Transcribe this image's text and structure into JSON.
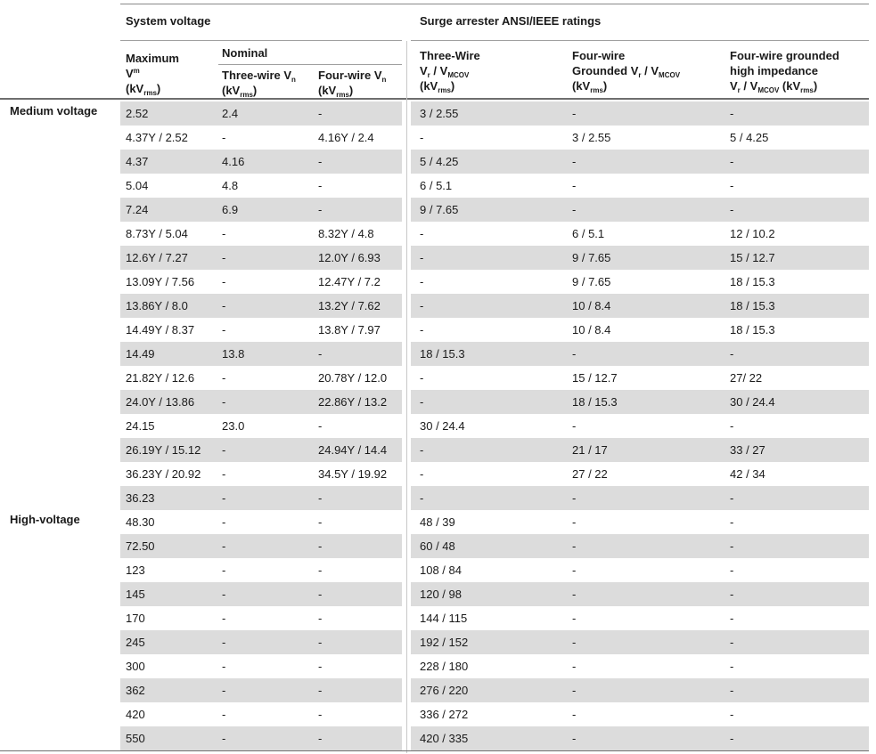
{
  "headers": {
    "system_voltage": "System voltage",
    "surge_arrester": "Surge arrester ANSI/IEEE ratings",
    "nominal": "Nominal",
    "maximum": {
      "line1": "Maximum",
      "line2_main": "V",
      "line2_sup": "m",
      "line3_pre": "(kV",
      "line3_sub": "rms",
      "line3_post": ")"
    },
    "three_wire_vn": {
      "main": "Three-wire V",
      "sub": "n",
      "unit_pre": "(kV",
      "unit_sub": "rms",
      "unit_post": ")"
    },
    "four_wire_vn": {
      "main": "Four-wire V",
      "sub": "n",
      "unit_pre": "(kV",
      "unit_sub": "rms",
      "unit_post": ")"
    },
    "three_wire_arrester": {
      "line1": "Three-Wire",
      "vr": "V",
      "vr_sub": "r",
      "sep": " / V",
      "mcov_sub": "MCOV",
      "unit_pre": "(kV",
      "unit_sub": "rms",
      "unit_post": ")"
    },
    "four_wire_grounded": {
      "line1": "Four-wire",
      "line2": "Grounded V",
      "vr_sub": "r",
      "sep": " / V",
      "mcov_sub": "MCOV",
      "unit_pre": "(kV",
      "unit_sub": "rms",
      "unit_post": ")"
    },
    "four_wire_high_imp": {
      "line1": "Four-wire grounded",
      "line2": "high impedance",
      "vr": "V",
      "vr_sub": "r",
      "sep": " / V",
      "mcov_sub": "MCOV",
      "unit_pre": " (kV",
      "unit_sub": "rms",
      "unit_post": ")"
    }
  },
  "groups": [
    {
      "label": "Medium voltage",
      "start_row": 0
    },
    {
      "label": "High-voltage",
      "start_row": 17
    }
  ],
  "rows": [
    [
      "2.52",
      "2.4",
      "-",
      "3 / 2.55",
      "-",
      "-"
    ],
    [
      "4.37Y / 2.52",
      "-",
      "4.16Y / 2.4",
      "-",
      "3 / 2.55",
      "5 / 4.25"
    ],
    [
      "4.37",
      "4.16",
      "-",
      "5 / 4.25",
      "-",
      "-"
    ],
    [
      "5.04",
      "4.8",
      "-",
      "6 / 5.1",
      "-",
      "-"
    ],
    [
      "7.24",
      "6.9",
      "-",
      "9 / 7.65",
      "-",
      "-"
    ],
    [
      "8.73Y / 5.04",
      "-",
      "8.32Y / 4.8",
      "-",
      "6 / 5.1",
      "12 / 10.2"
    ],
    [
      "12.6Y / 7.27",
      "-",
      "12.0Y / 6.93",
      "-",
      "9 / 7.65",
      "15 / 12.7"
    ],
    [
      "13.09Y / 7.56",
      "-",
      "12.47Y / 7.2",
      "-",
      "9 / 7.65",
      "18 / 15.3"
    ],
    [
      "13.86Y / 8.0",
      "-",
      "13.2Y / 7.62",
      "-",
      "10 / 8.4",
      "18 / 15.3"
    ],
    [
      "14.49Y / 8.37",
      "-",
      "13.8Y / 7.97",
      "-",
      "10 / 8.4",
      "18 / 15.3"
    ],
    [
      "14.49",
      "13.8",
      "-",
      "18 / 15.3",
      "-",
      "-"
    ],
    [
      "21.82Y / 12.6",
      "-",
      "20.78Y / 12.0",
      "-",
      "15 / 12.7",
      "27/ 22"
    ],
    [
      "24.0Y / 13.86",
      "-",
      "22.86Y / 13.2",
      "-",
      "18 / 15.3",
      "30 / 24.4"
    ],
    [
      "24.15",
      "23.0",
      "-",
      "30 / 24.4",
      "-",
      "-"
    ],
    [
      "26.19Y / 15.12",
      "-",
      "24.94Y / 14.4",
      "-",
      "21 / 17",
      "33 / 27"
    ],
    [
      "36.23Y / 20.92",
      "-",
      "34.5Y / 19.92",
      "-",
      "27 / 22",
      "42 / 34"
    ],
    [
      "36.23",
      "-",
      "-",
      "-",
      "-",
      "-"
    ],
    [
      "48.30",
      "-",
      "-",
      "48 / 39",
      "-",
      "-"
    ],
    [
      "72.50",
      "-",
      "-",
      "60 / 48",
      "-",
      "-"
    ],
    [
      "123",
      "-",
      "-",
      "108 / 84",
      "-",
      "-"
    ],
    [
      "145",
      "-",
      "-",
      "120 / 98",
      "-",
      "-"
    ],
    [
      "170",
      "-",
      "-",
      "144 / 115",
      "-",
      "-"
    ],
    [
      "245",
      "-",
      "-",
      "192 / 152",
      "-",
      "-"
    ],
    [
      "300",
      "-",
      "-",
      "228 / 180",
      "-",
      "-"
    ],
    [
      "362",
      "-",
      "-",
      "276 / 220",
      "-",
      "-"
    ],
    [
      "420",
      "-",
      "-",
      "336 / 272",
      "-",
      "-"
    ],
    [
      "550",
      "-",
      "-",
      "420 / 335",
      "-",
      "-"
    ]
  ]
}
